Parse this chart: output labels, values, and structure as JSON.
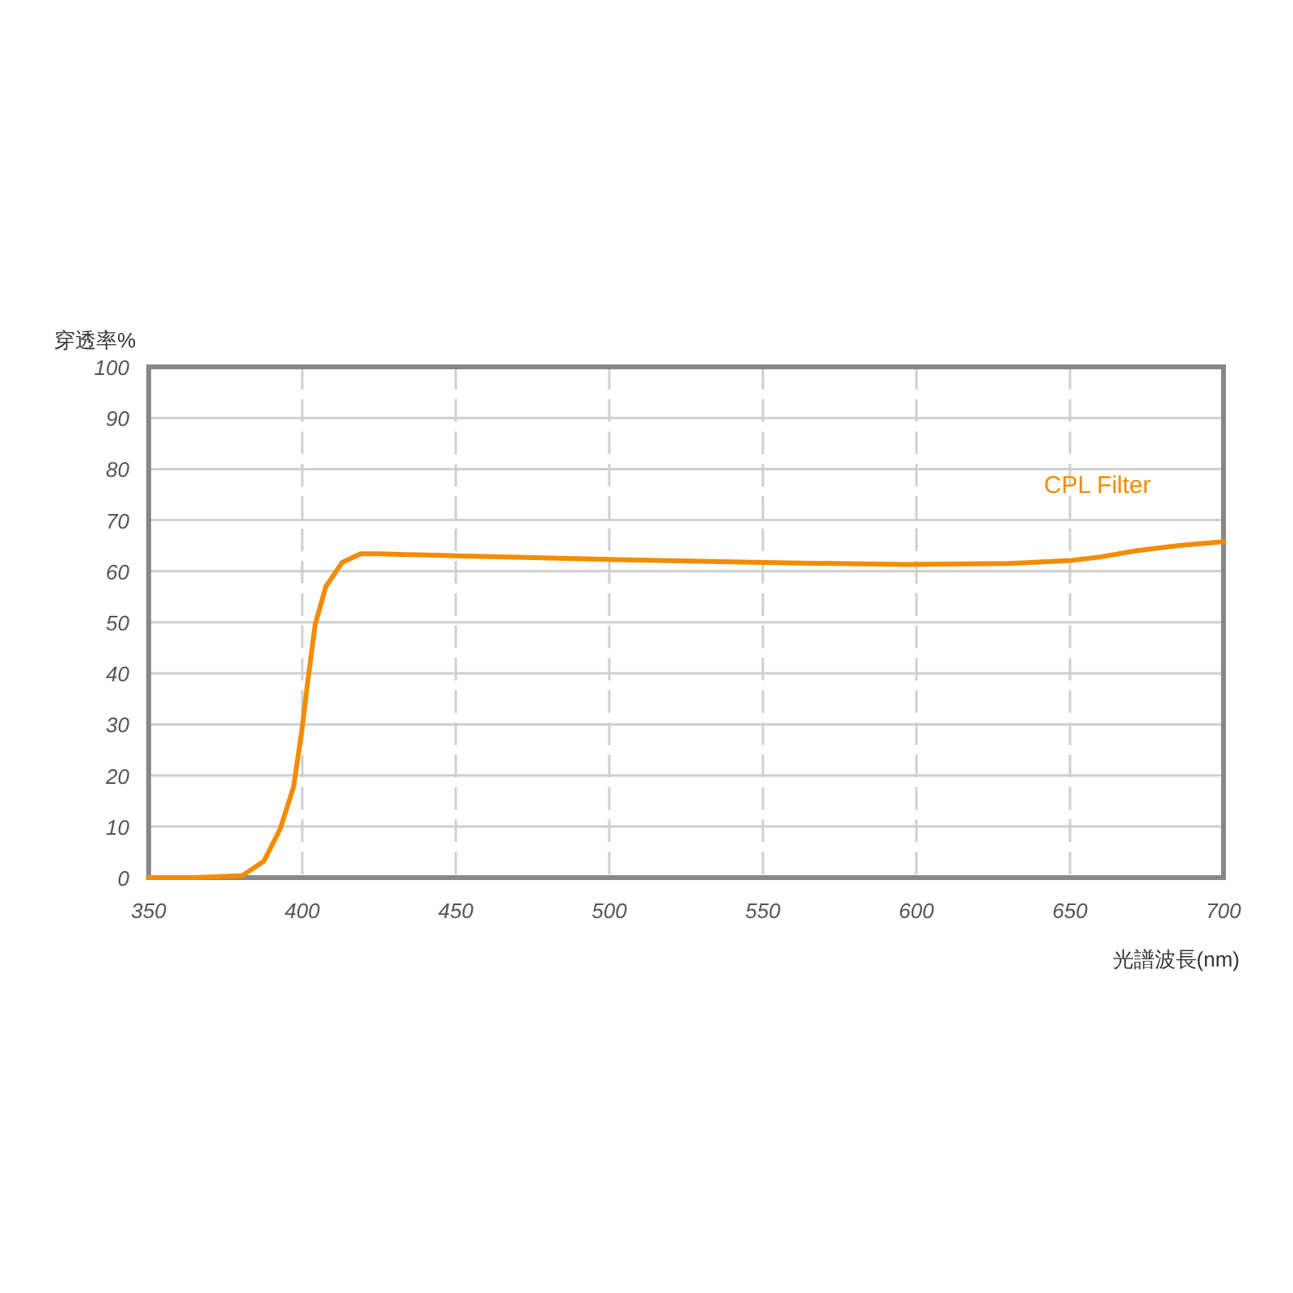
{
  "chart_data": {
    "type": "line",
    "xlabel": "光譜波長(nm)",
    "ylabel": "穿透率%",
    "xlim": [
      350,
      700
    ],
    "xticks": [
      350,
      400,
      450,
      500,
      550,
      600,
      650,
      700
    ],
    "ylim": [
      0,
      100
    ],
    "yticks": [
      0,
      10,
      20,
      30,
      40,
      50,
      60,
      70,
      80,
      90,
      100
    ],
    "grid": true,
    "legend": false,
    "marker": "none",
    "line_style": "solid",
    "series": [
      {
        "name": "CPL Filter",
        "color": "#f28c00",
        "x": [
          350,
          365,
          380.5,
          387.5,
          392.8,
          397.2,
          399.8,
          401.9,
          404.2,
          407.7,
          413,
          419,
          425,
          450,
          500,
          550,
          596,
          630,
          650.5,
          660,
          671.6,
          685,
          700
        ],
        "values": [
          0,
          0,
          0.4,
          3.2,
          9.5,
          17.8,
          28.5,
          38.9,
          49.5,
          57,
          61.7,
          63.4,
          63.4,
          63,
          62.3,
          61.7,
          61.3,
          61.5,
          62.1,
          62.8,
          64,
          65,
          65.8
        ]
      }
    ]
  }
}
